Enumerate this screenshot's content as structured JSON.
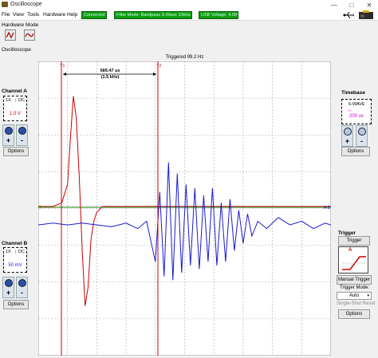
{
  "window": {
    "title": "Oscilloscope"
  },
  "menu": {
    "items": [
      "File",
      "View",
      "Tools",
      "Hardware",
      "Help"
    ]
  },
  "status": {
    "connected": "Connected",
    "filter": "Filter Mode: Bandpass S-Wave 10kHz",
    "voltage": "USB Voltage: 4.99V",
    "color": "#0f9b0f"
  },
  "hardware_mode": {
    "label": "Hardware Mode"
  },
  "oscilloscope": {
    "label": "Oscilloscope"
  },
  "scope": {
    "trigger_status": "Triggered 99.2 Hz",
    "cursor1": "T1",
    "cursor2": "T2",
    "delta_time": "689.47 us",
    "delta_freq": "(1.5 kHz)",
    "trigger_marker": "T",
    "level_marker": "A B"
  },
  "channel_a": {
    "title": "Channel A",
    "probe": "1X",
    "coupling": "DC",
    "scale": "1.0 V",
    "zoom_in": "+",
    "zoom_out": "-",
    "options": "Options",
    "color": "#cc0000"
  },
  "channel_b": {
    "title": "Channel B",
    "probe": "1X",
    "coupling": "DC",
    "scale": "50 mV",
    "zoom_in": "+",
    "zoom_out": "-",
    "options": "Options",
    "color": "#1a1ad0"
  },
  "timebase": {
    "title": "Timebase",
    "mode": "S-WAVE",
    "scale": "200 us",
    "zoom_in": "+",
    "zoom_out": "-",
    "options": "Options",
    "color": "#cc00cc"
  },
  "trigger": {
    "title": "Trigger",
    "button": "Trigger",
    "manual": "Manual Trigger",
    "mode_label": "Trigger Mode:",
    "mode_value": "Auto",
    "single_shot": "Single-Shot Reset",
    "options": "Options"
  },
  "chart_data": {
    "type": "line",
    "title": "",
    "xlabel": "",
    "ylabel": "",
    "grid": true,
    "x_divisions": 10,
    "y_divisions": 8,
    "series": [
      {
        "name": "Channel A",
        "color": "#cc0000",
        "x": [
          0.0,
          0.5,
          0.8,
          1.0,
          1.1,
          1.2,
          1.3,
          1.4,
          1.5,
          1.6,
          1.7,
          1.8,
          1.9,
          2.0,
          2.2,
          2.5,
          3.0,
          5.0,
          10.0
        ],
        "y": [
          0.0,
          0.0,
          0.1,
          0.6,
          1.9,
          3.0,
          2.4,
          0.8,
          -1.2,
          -2.7,
          -2.2,
          -0.9,
          -0.4,
          -0.15,
          0.0,
          0.0,
          0.0,
          0.0,
          0.0
        ]
      },
      {
        "name": "Channel B",
        "color": "#1a1ad0",
        "x": [
          0.0,
          0.5,
          1.0,
          1.5,
          2.0,
          2.5,
          3.0,
          3.4,
          3.7,
          4.0,
          4.15,
          4.3,
          4.45,
          4.6,
          4.75,
          4.9,
          5.05,
          5.2,
          5.35,
          5.5,
          5.65,
          5.8,
          5.95,
          6.1,
          6.25,
          6.4,
          6.55,
          6.7,
          6.85,
          7.0,
          7.15,
          7.3,
          7.5,
          7.8,
          8.2,
          8.6,
          9.0,
          9.4,
          9.8,
          10.0
        ],
        "y": [
          -0.5,
          -0.45,
          -0.5,
          -0.45,
          -0.5,
          -0.55,
          -0.45,
          -0.6,
          -0.4,
          -1.5,
          0.4,
          -1.9,
          1.2,
          -2.0,
          0.9,
          -1.8,
          0.6,
          -1.6,
          0.5,
          -1.7,
          0.3,
          -1.5,
          0.5,
          -1.6,
          0.1,
          -1.5,
          0.2,
          -1.2,
          -0.1,
          -1.0,
          -0.2,
          -0.8,
          -0.4,
          -0.6,
          -0.3,
          -0.5,
          -0.4,
          -0.6,
          -0.45,
          -0.5
        ]
      }
    ]
  }
}
